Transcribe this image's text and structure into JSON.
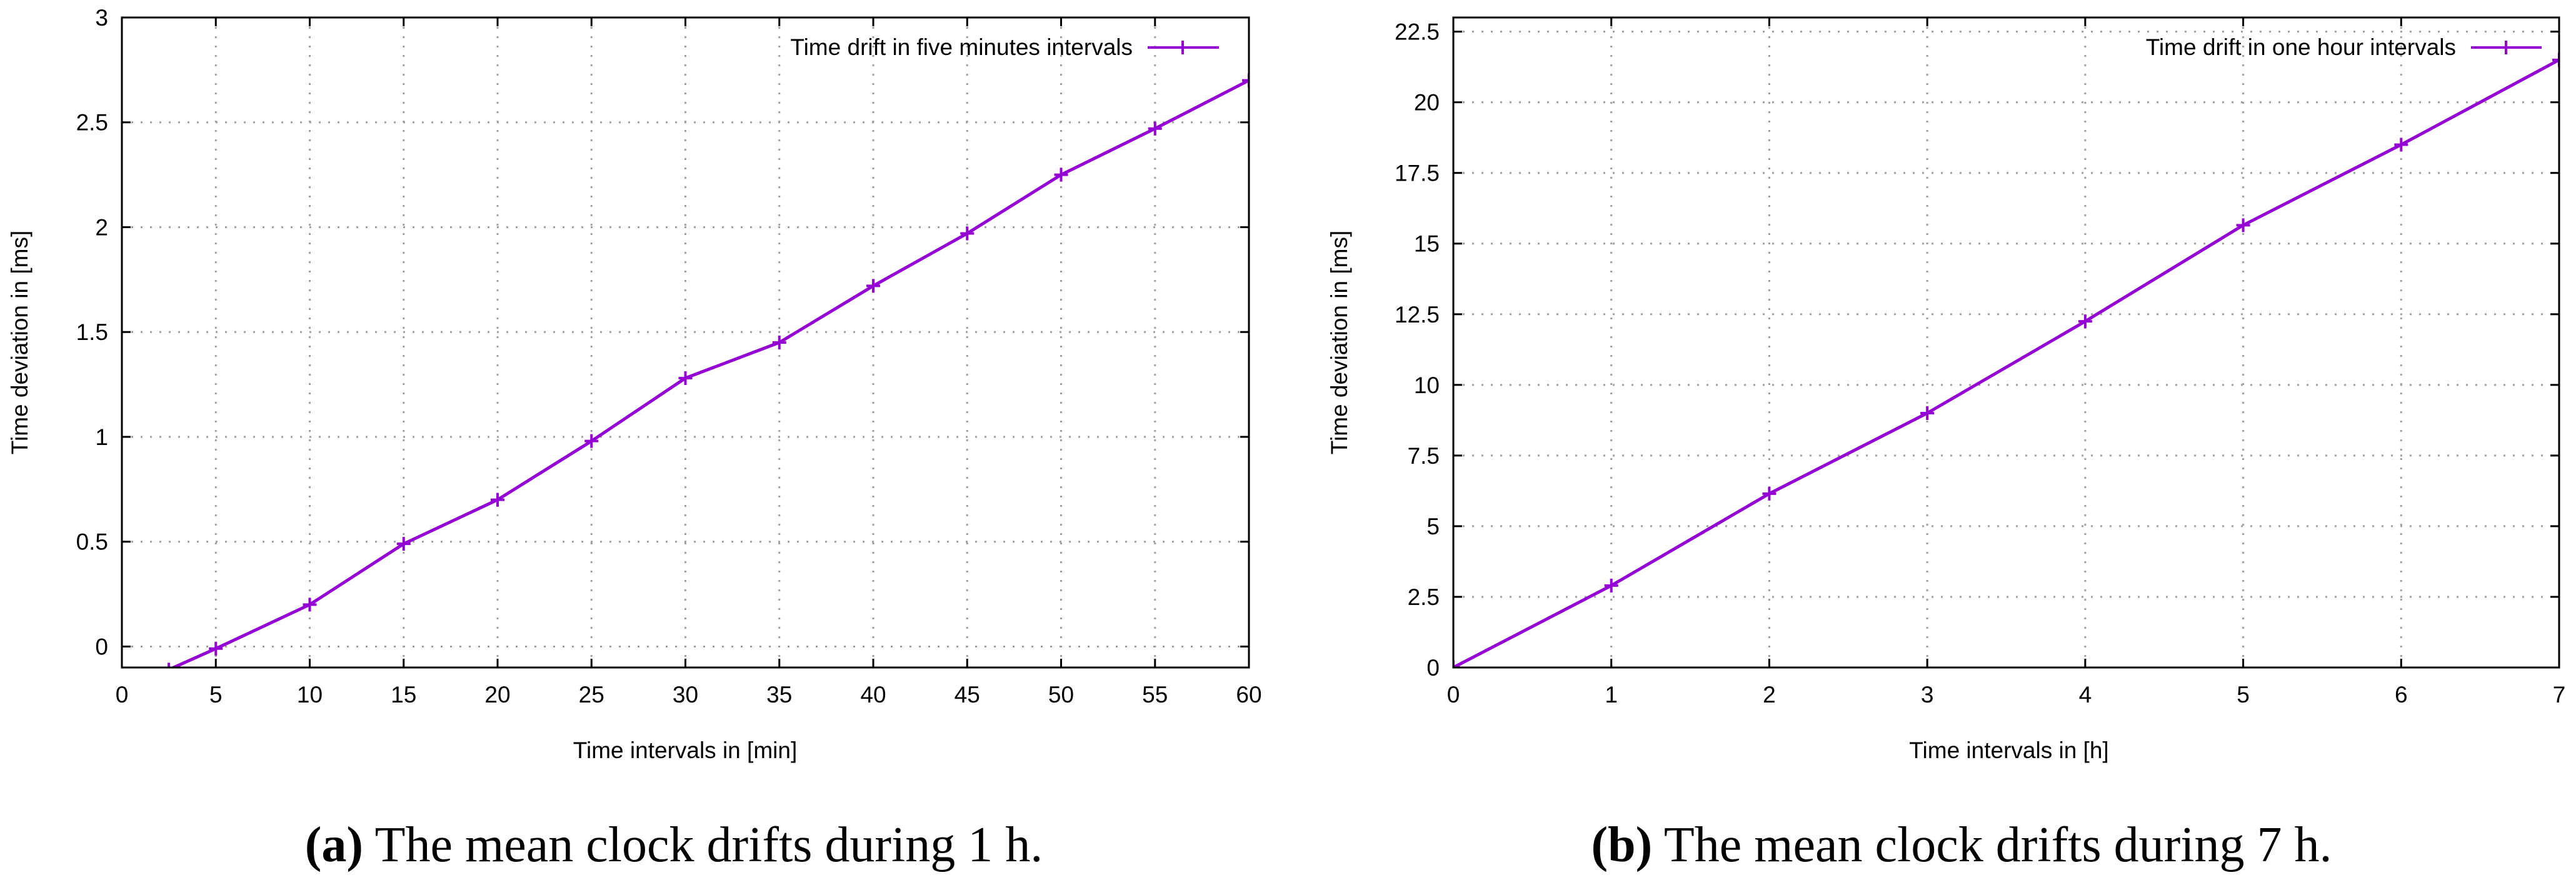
{
  "colors": {
    "series": "#9400d3",
    "grid": "#a0a0a0",
    "axis": "#000000"
  },
  "chart_data": [
    {
      "type": "line",
      "xlabel": "Time intervals in [min]",
      "ylabel": "Time deviation in [ms]",
      "xlim": [
        0,
        60
      ],
      "ylim": [
        -0.1,
        3
      ],
      "xticks": [
        0,
        5,
        10,
        15,
        20,
        25,
        30,
        35,
        40,
        45,
        50,
        55,
        60
      ],
      "yticks": [
        0,
        0.5,
        1,
        1.5,
        2,
        2.5,
        3
      ],
      "grid": true,
      "legend_position": "top-right",
      "series": [
        {
          "name": "Time drift in five minutes intervals",
          "x": [
            2.5,
            5,
            10,
            15,
            20,
            25,
            30,
            35,
            40,
            45,
            50,
            55,
            60
          ],
          "y": [
            -0.11,
            -0.01,
            0.2,
            0.49,
            0.7,
            0.98,
            1.28,
            1.45,
            1.72,
            1.97,
            2.25,
            2.47,
            2.7
          ]
        }
      ],
      "caption_letter": "(a)",
      "caption_text": " The mean clock drifts during 1 h."
    },
    {
      "type": "line",
      "xlabel": "Time intervals in [h]",
      "ylabel": "Time deviation in [ms]",
      "xlim": [
        0,
        7
      ],
      "ylim": [
        0,
        23
      ],
      "xticks": [
        0,
        1,
        2,
        3,
        4,
        5,
        6,
        7
      ],
      "yticks": [
        0,
        2.5,
        5,
        7.5,
        10,
        12.5,
        15,
        17.5,
        20,
        22.5
      ],
      "grid": true,
      "legend_position": "top-right",
      "series": [
        {
          "name": "Time drift in one hour intervals",
          "x": [
            0,
            1,
            2,
            3,
            4,
            5,
            6,
            7
          ],
          "y": [
            0,
            2.9,
            6.15,
            9.0,
            12.25,
            15.65,
            18.5,
            21.5
          ]
        }
      ],
      "caption_letter": "(b)",
      "caption_text": " The mean clock drifts during 7 h."
    }
  ]
}
